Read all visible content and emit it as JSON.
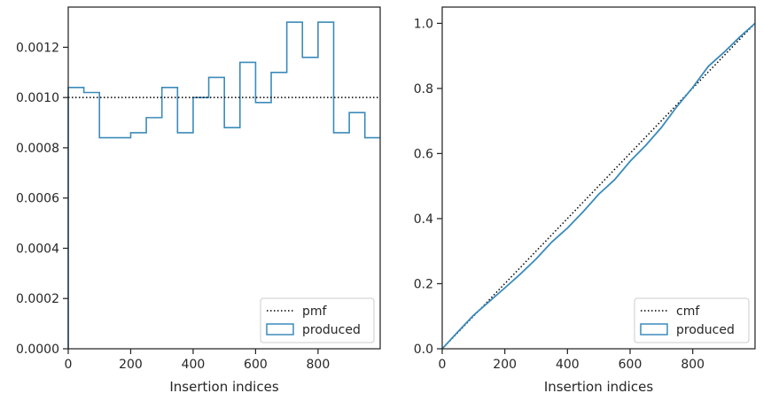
{
  "chart_data": [
    {
      "type": "step-histogram",
      "xlabel": "Insertion indices",
      "ylabel": "",
      "xlim": [
        0,
        999
      ],
      "ylim": [
        0,
        0.00136
      ],
      "x_ticks": [
        {
          "value": 0,
          "label": "0"
        },
        {
          "value": 200,
          "label": "200"
        },
        {
          "value": 400,
          "label": "400"
        },
        {
          "value": 600,
          "label": "600"
        },
        {
          "value": 800,
          "label": "800"
        }
      ],
      "y_ticks": [
        {
          "value": 0,
          "label": "0.0000"
        },
        {
          "value": 0.0002,
          "label": "0.0002"
        },
        {
          "value": 0.0004,
          "label": "0.0004"
        },
        {
          "value": 0.0006,
          "label": "0.0006"
        },
        {
          "value": 0.0008,
          "label": "0.0008"
        },
        {
          "value": 0.001,
          "label": "0.0010"
        },
        {
          "value": 0.0012,
          "label": "0.0012"
        }
      ],
      "reference": {
        "name": "pmf",
        "value": 0.001,
        "color": "#000000",
        "style": "dotted"
      },
      "series": [
        {
          "name": "produced",
          "color": "#3b8bba",
          "bin_edges": [
            0,
            50,
            100,
            150,
            200,
            250,
            300,
            350,
            400,
            450,
            500,
            550,
            600,
            650,
            700,
            750,
            800,
            850,
            900,
            950,
            999
          ],
          "values": [
            0.00104,
            0.00102,
            0.00084,
            0.00084,
            0.00086,
            0.00092,
            0.00104,
            0.00086,
            0.001,
            0.00108,
            0.00088,
            0.00114,
            0.00098,
            0.0011,
            0.0013,
            0.00116,
            0.0013,
            0.00086,
            0.00094,
            0.00084
          ]
        }
      ],
      "legend": {
        "placement": "lower-right",
        "entries": [
          "pmf",
          "produced"
        ]
      },
      "grid": false
    },
    {
      "type": "step-line",
      "xlabel": "Insertion indices",
      "ylabel": "",
      "xlim": [
        0,
        999
      ],
      "ylim": [
        0,
        1.05
      ],
      "x_ticks": [
        {
          "value": 0,
          "label": "0"
        },
        {
          "value": 200,
          "label": "200"
        },
        {
          "value": 400,
          "label": "400"
        },
        {
          "value": 600,
          "label": "600"
        },
        {
          "value": 800,
          "label": "800"
        }
      ],
      "y_ticks": [
        {
          "value": 0,
          "label": "0.0"
        },
        {
          "value": 0.2,
          "label": "0.2"
        },
        {
          "value": 0.4,
          "label": "0.4"
        },
        {
          "value": 0.6,
          "label": "0.6"
        },
        {
          "value": 0.8,
          "label": "0.8"
        },
        {
          "value": 1.0,
          "label": "1.0"
        }
      ],
      "reference": {
        "name": "cmf",
        "points": [
          [
            0,
            0
          ],
          [
            999,
            1.0
          ]
        ],
        "color": "#000000",
        "style": "dotted"
      },
      "series": [
        {
          "name": "produced",
          "color": "#3b8bba",
          "x": [
            0,
            50,
            100,
            150,
            200,
            250,
            300,
            350,
            400,
            450,
            500,
            550,
            600,
            650,
            700,
            750,
            800,
            850,
            900,
            950,
            999
          ],
          "values": [
            0,
            0.052,
            0.103,
            0.145,
            0.187,
            0.23,
            0.276,
            0.328,
            0.371,
            0.421,
            0.475,
            0.519,
            0.576,
            0.625,
            0.68,
            0.745,
            0.803,
            0.868,
            0.911,
            0.958,
            1.0
          ]
        }
      ],
      "legend": {
        "placement": "lower-right",
        "entries": [
          "cmf",
          "produced"
        ]
      },
      "grid": false
    }
  ]
}
